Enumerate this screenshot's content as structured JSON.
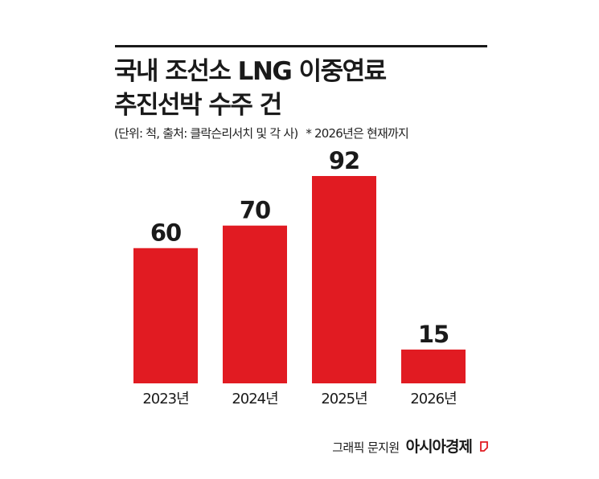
{
  "header": {
    "title_line1": "국내 조선소 LNG 이중연료",
    "title_line2": "추진선박 수주 건",
    "subtitle": "(단위: 척, 출처: 클락슨리서치 및 각 사)",
    "note": "* 2026년은 현재까지"
  },
  "chart_data": {
    "type": "bar",
    "categories": [
      "2023년",
      "2024년",
      "2025년",
      "2026년"
    ],
    "values": [
      60,
      70,
      92,
      15
    ],
    "title": "국내 조선소 LNG 이중연료 추진선박 수주 건",
    "xlabel": "",
    "ylabel": "",
    "ylim": [
      0,
      100
    ],
    "grid": false,
    "legend": "none",
    "bar_color": "#E11B22"
  },
  "footer": {
    "credit": "그래픽 문지원",
    "brand": "아시아경제"
  },
  "colors": {
    "accent": "#E11B22",
    "text": "#1a1a1a"
  }
}
